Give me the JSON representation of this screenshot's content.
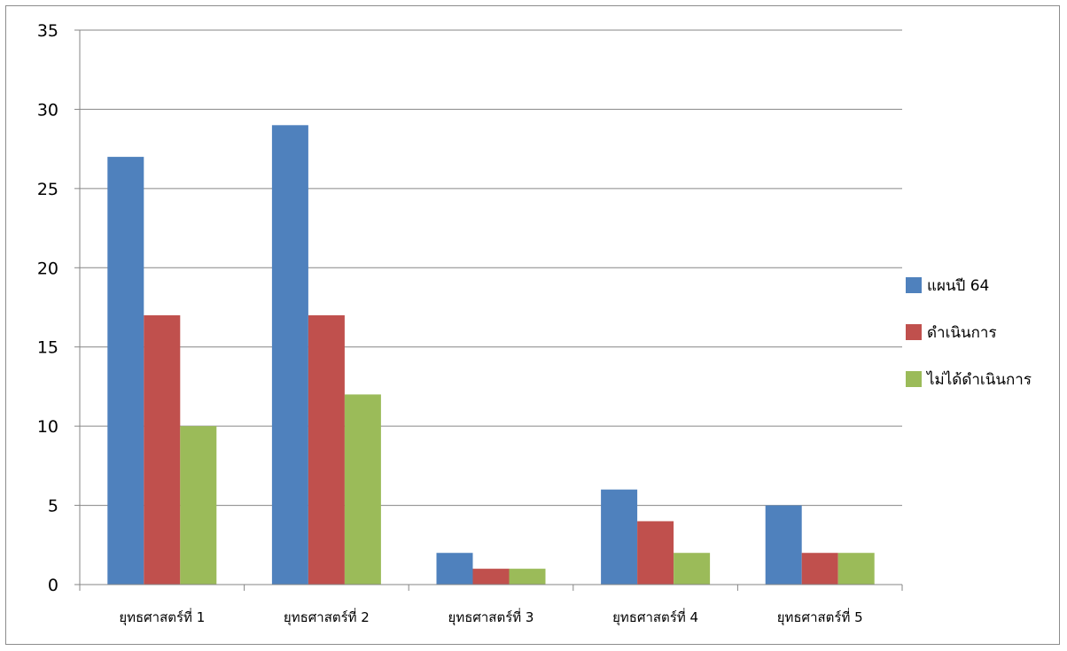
{
  "chart_data": {
    "type": "bar",
    "categories": [
      "ยุทธศาสตร์ที่ 1",
      "ยุทธศาสตร์ที่ 2",
      "ยุทธศาสตร์ที่ 3",
      "ยุทธศาสตร์ที่ 4",
      "ยุทธศาสตร์ที่ 5"
    ],
    "series": [
      {
        "name": "แผนปี 64",
        "color": "#4f81bd",
        "values": [
          27,
          29,
          2,
          6,
          5
        ]
      },
      {
        "name": "ดำเนินการ",
        "color": "#c0504d",
        "values": [
          17,
          17,
          1,
          4,
          2
        ]
      },
      {
        "name": "ไม่ได้ดำเนินการ",
        "color": "#9bbb59",
        "values": [
          10,
          12,
          1,
          2,
          2
        ]
      }
    ],
    "y_ticks": [
      "0",
      "5",
      "10",
      "15",
      "20",
      "25",
      "30",
      "35"
    ],
    "ylim": [
      0,
      35
    ],
    "grid": true,
    "legend": "right",
    "title": "",
    "xlabel": "",
    "ylabel": ""
  }
}
